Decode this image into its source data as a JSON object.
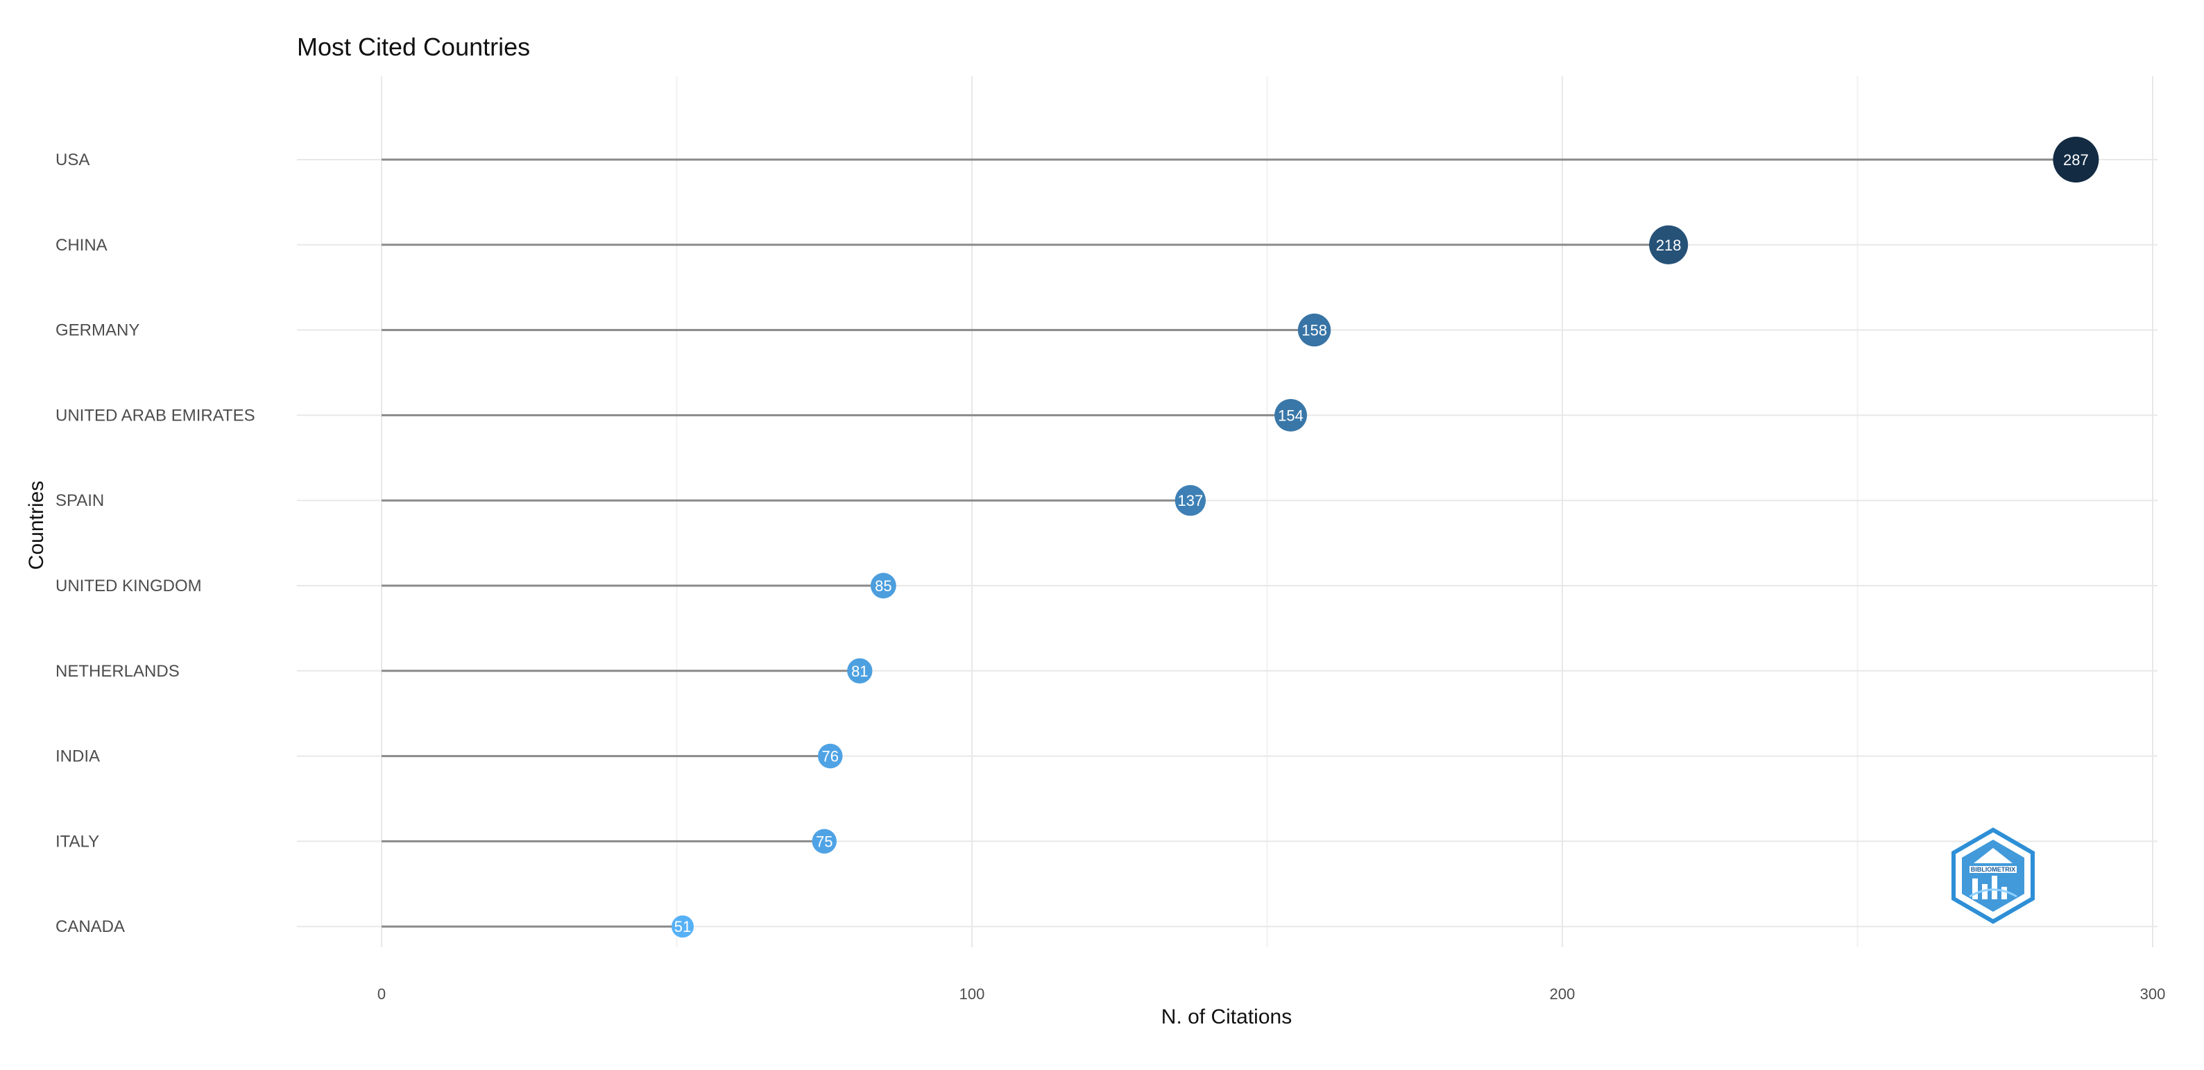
{
  "chart_data": {
    "type": "lollipop",
    "title": "Most Cited Countries",
    "xlabel": "N. of Citations",
    "ylabel": "Countries",
    "xlim": [
      0,
      300
    ],
    "xticks": [
      0,
      100,
      200,
      300
    ],
    "grid": true,
    "categories": [
      "USA",
      "CHINA",
      "GERMANY",
      "UNITED ARAB EMIRATES",
      "SPAIN",
      "UNITED KINGDOM",
      "NETHERLANDS",
      "INDIA",
      "ITALY",
      "CANADA"
    ],
    "values": [
      287,
      218,
      158,
      154,
      137,
      85,
      81,
      76,
      75,
      51
    ],
    "color_scale": {
      "low": "#56B1F7",
      "high": "#132B43"
    }
  },
  "logo": {
    "text": "BIBLIOMETRIX"
  }
}
